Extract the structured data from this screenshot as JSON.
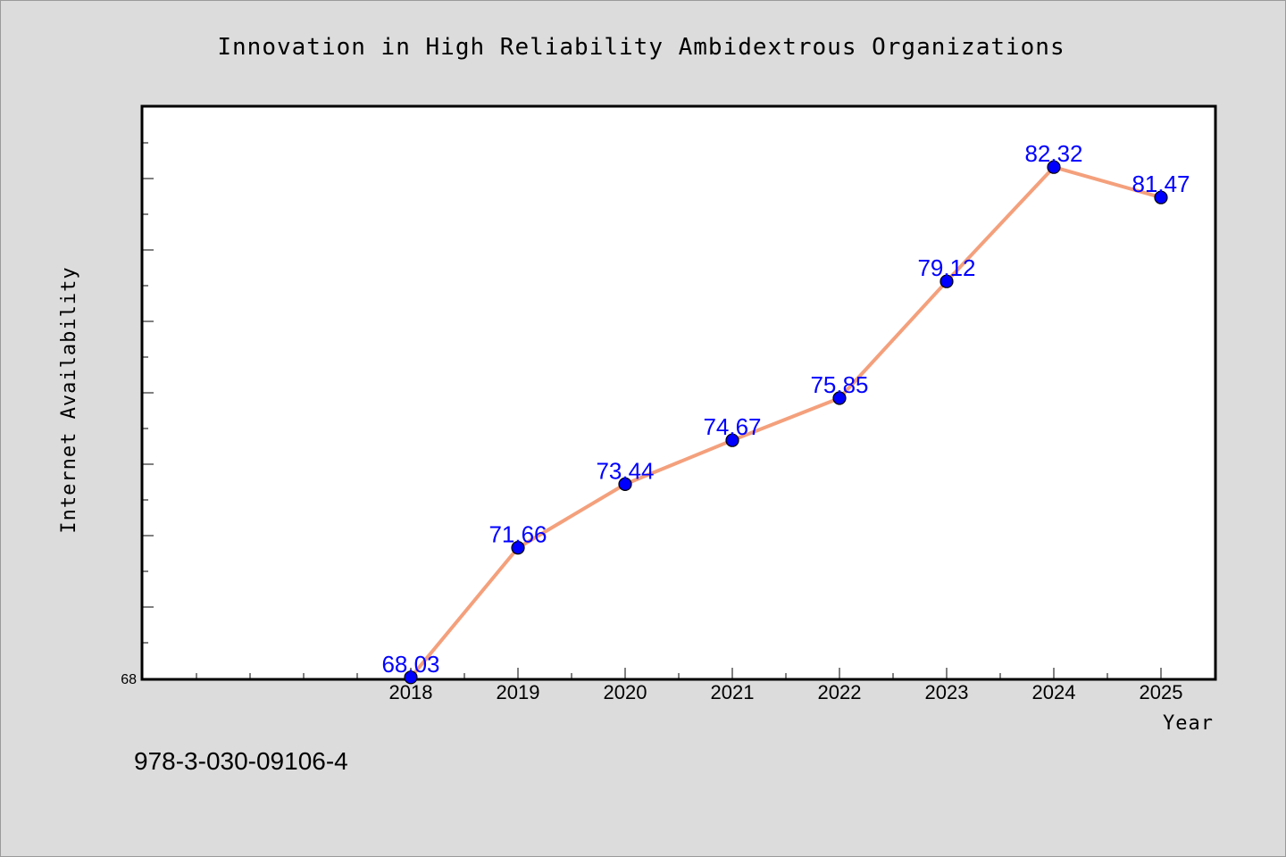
{
  "chart_data": {
    "type": "line",
    "title": "Innovation in High Reliability Ambidextrous Organizations",
    "xlabel": "Year",
    "ylabel": "Internet Availability",
    "x": [
      "2018",
      "2019",
      "2020",
      "2021",
      "2022",
      "2023",
      "2024",
      "2025"
    ],
    "series": [
      {
        "values": [
          68.03,
          71.66,
          73.44,
          74.67,
          75.85,
          79.12,
          82.32,
          81.47
        ],
        "line_color": "#f4a07c",
        "marker_color": "#0000ff"
      }
    ],
    "y_tick_label": "68",
    "ylim": [
      68,
      84
    ],
    "grid": false,
    "data_label_color": "#0000ff"
  },
  "footnote": "978-3-030-09106-4",
  "colors": {
    "background": "#dcdcdc",
    "plot_background": "#ffffff",
    "line": "#f4a07c",
    "marker": "#0000ff"
  }
}
